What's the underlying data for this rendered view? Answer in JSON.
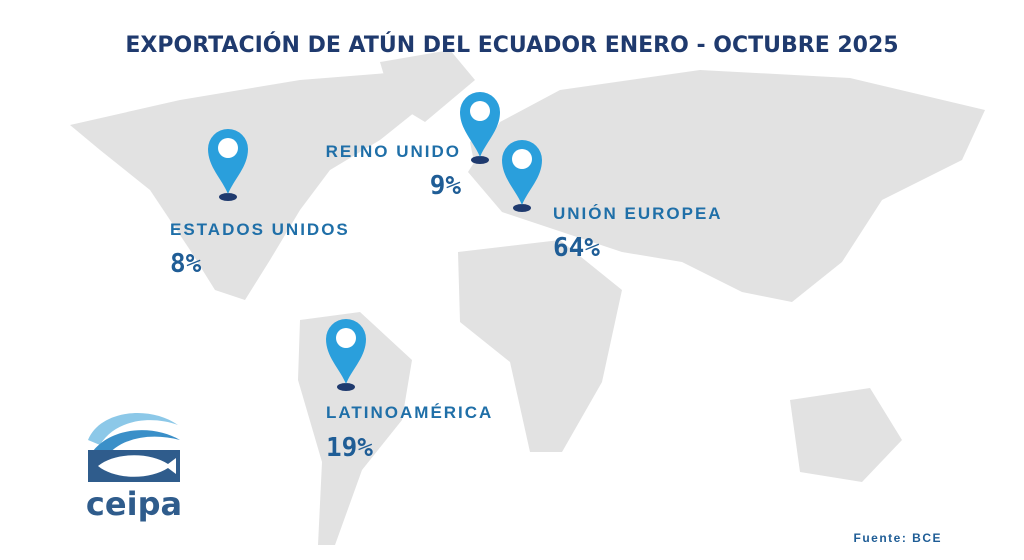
{
  "title": "EXPORTACIÓN DE ATÚN DEL ECUADOR ENERO - OCTUBRE 2025",
  "regions": [
    {
      "name": "ESTADOS UNIDOS",
      "share": "8%"
    },
    {
      "name": "REINO UNIDO",
      "share": "9%"
    },
    {
      "name": "UNIÓN EUROPEA",
      "share": "64%"
    },
    {
      "name": "LATINOAMÉRICA",
      "share": "19%"
    }
  ],
  "logo": "ceipa",
  "source": "Fuente: BCE"
}
